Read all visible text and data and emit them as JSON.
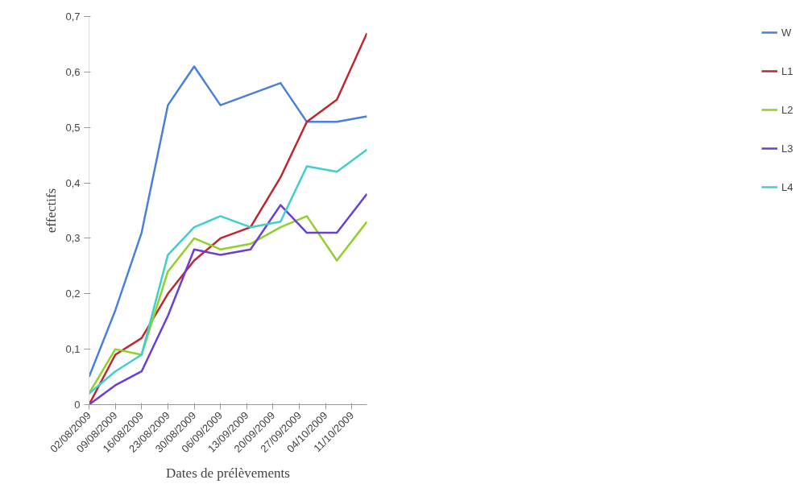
{
  "chart_data": {
    "type": "line",
    "xlabel": "Dates de prélèvements",
    "ylabel": "effectifs",
    "x": [
      "2009-08-02",
      "2009-08-09",
      "2009-08-16",
      "2009-08-23",
      "2009-08-30",
      "2009-09-06",
      "2009-09-14",
      "2009-09-22",
      "2009-09-29",
      "2009-10-07",
      "2009-10-15"
    ],
    "series": [
      {
        "name": "W",
        "color": "#4a7fdc",
        "values": [
          0.05,
          0.17,
          0.31,
          0.54,
          0.61,
          0.54,
          0.56,
          0.58,
          0.51,
          0.51,
          0.52
        ]
      },
      {
        "name": "L1",
        "color": "#c0262e",
        "values": [
          0.0,
          0.09,
          0.12,
          0.2,
          0.26,
          0.3,
          0.32,
          0.41,
          0.51,
          0.55,
          0.67
        ]
      },
      {
        "name": "L2",
        "color": "#8fd12a",
        "values": [
          0.02,
          0.1,
          0.09,
          0.24,
          0.3,
          0.28,
          0.29,
          0.32,
          0.34,
          0.26,
          0.33
        ]
      },
      {
        "name": "L3",
        "color": "#6a3fd6",
        "values": [
          0.0,
          0.035,
          0.06,
          0.16,
          0.28,
          0.27,
          0.28,
          0.36,
          0.31,
          0.31,
          0.38
        ]
      },
      {
        "name": "L4",
        "color": "#3fd0cc",
        "values": [
          0.02,
          0.06,
          0.09,
          0.27,
          0.32,
          0.34,
          0.32,
          0.33,
          0.43,
          0.42,
          0.46
        ]
      }
    ],
    "xlim": [
      "2009-08-02",
      "2009-10-15"
    ],
    "xticks": [
      {
        "value": "2009-08-02",
        "label": "02/08/2009"
      },
      {
        "value": "2009-08-09",
        "label": "09/08/2009"
      },
      {
        "value": "2009-08-16",
        "label": "16/08/2009"
      },
      {
        "value": "2009-08-23",
        "label": "23/08/2009"
      },
      {
        "value": "2009-08-30",
        "label": "30/08/2009"
      },
      {
        "value": "2009-09-06",
        "label": "06/09/2009"
      },
      {
        "value": "2009-09-13",
        "label": "13/09/2009"
      },
      {
        "value": "2009-09-20",
        "label": "20/09/2009"
      },
      {
        "value": "2009-09-27",
        "label": "27/09/2009"
      },
      {
        "value": "2009-10-04",
        "label": "04/10/2009"
      },
      {
        "value": "2009-10-11",
        "label": "11/10/2009"
      }
    ],
    "ylim": [
      0,
      0.7
    ],
    "yticks": [
      {
        "value": 0,
        "label": "0"
      },
      {
        "value": 0.1,
        "label": "0,1"
      },
      {
        "value": 0.2,
        "label": "0,2"
      },
      {
        "value": 0.3,
        "label": "0,3"
      },
      {
        "value": 0.4,
        "label": "0,4"
      },
      {
        "value": 0.5,
        "label": "0,5"
      },
      {
        "value": 0.6,
        "label": "0,6"
      },
      {
        "value": 0.7,
        "label": "0,7"
      }
    ],
    "grid": false,
    "legend": "right",
    "marker": "none",
    "line_style": "solid"
  }
}
